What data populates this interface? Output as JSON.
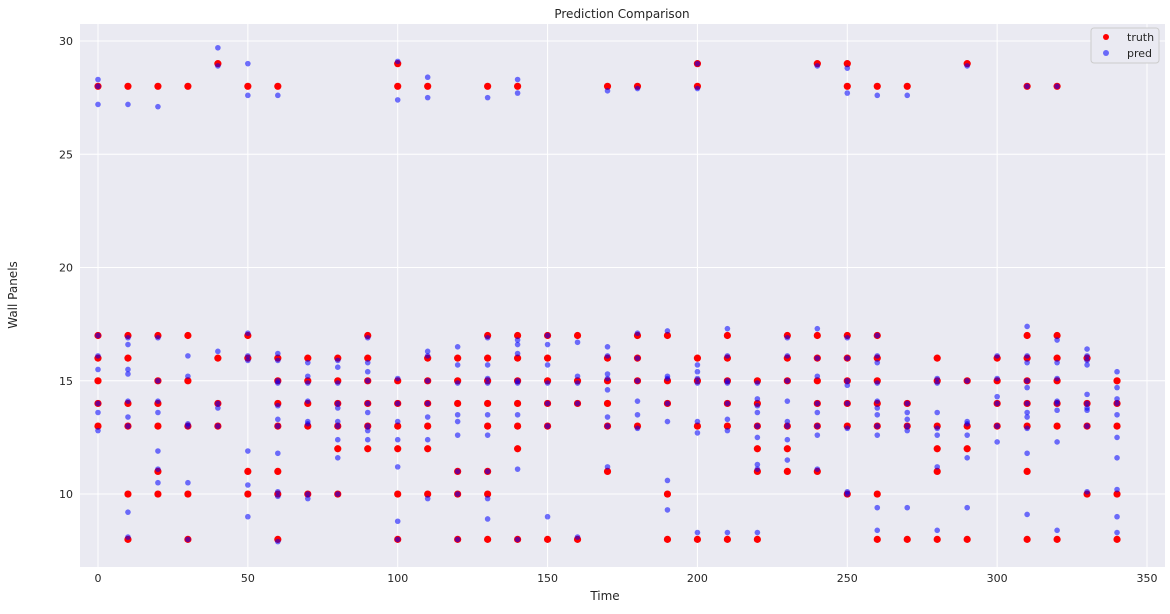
{
  "chart_data": {
    "type": "scatter",
    "title": "Prediction Comparison",
    "xlabel": "Time",
    "ylabel": "Wall Panels",
    "xlim": [
      -6,
      356
    ],
    "ylim": [
      6.78,
      30.75
    ],
    "xticks": [
      0,
      50,
      100,
      150,
      200,
      250,
      300,
      350
    ],
    "yticks": [
      10,
      15,
      20,
      25,
      30
    ],
    "grid": true,
    "legend_position": "top-right",
    "background": "#eaeaf2",
    "series": [
      {
        "name": "truth",
        "color": "#ff0000",
        "points": [
          {
            "x": 0,
            "y": [
              28,
              17,
              16,
              15,
              14,
              13
            ]
          },
          {
            "x": 10,
            "y": [
              28,
              17,
              16,
              14,
              13,
              10,
              8
            ]
          },
          {
            "x": 20,
            "y": [
              28,
              17,
              15,
              14,
              13,
              11,
              10
            ]
          },
          {
            "x": 30,
            "y": [
              28,
              17,
              15,
              13,
              10,
              8
            ]
          },
          {
            "x": 40,
            "y": [
              29,
              16,
              14,
              13
            ]
          },
          {
            "x": 50,
            "y": [
              28,
              17,
              16,
              11,
              10
            ]
          },
          {
            "x": 60,
            "y": [
              28,
              16,
              15,
              14,
              13,
              11,
              10,
              8
            ]
          },
          {
            "x": 70,
            "y": [
              16,
              15,
              14,
              13,
              10
            ]
          },
          {
            "x": 80,
            "y": [
              16,
              15,
              14,
              13,
              12,
              10
            ]
          },
          {
            "x": 90,
            "y": [
              17,
              16,
              15,
              14,
              13,
              12
            ]
          },
          {
            "x": 100,
            "y": [
              29,
              28,
              15,
              14,
              13,
              12,
              10,
              8
            ]
          },
          {
            "x": 110,
            "y": [
              28,
              16,
              15,
              14,
              13,
              12,
              10
            ]
          },
          {
            "x": 120,
            "y": [
              16,
              15,
              14,
              11,
              10,
              8
            ]
          },
          {
            "x": 130,
            "y": [
              28,
              17,
              16,
              15,
              14,
              13,
              11,
              10,
              8
            ]
          },
          {
            "x": 140,
            "y": [
              28,
              17,
              16,
              15,
              14,
              13,
              12,
              8
            ]
          },
          {
            "x": 150,
            "y": [
              17,
              16,
              15,
              14,
              13,
              8
            ]
          },
          {
            "x": 160,
            "y": [
              17,
              15,
              14,
              8
            ]
          },
          {
            "x": 170,
            "y": [
              28,
              16,
              15,
              14,
              13,
              11
            ]
          },
          {
            "x": 180,
            "y": [
              28,
              17,
              16,
              15,
              13
            ]
          },
          {
            "x": 190,
            "y": [
              17,
              15,
              14,
              10,
              8
            ]
          },
          {
            "x": 200,
            "y": [
              29,
              28,
              16,
              15,
              13,
              8
            ]
          },
          {
            "x": 210,
            "y": [
              17,
              16,
              15,
              14,
              13,
              8
            ]
          },
          {
            "x": 220,
            "y": [
              15,
              14,
              13,
              12,
              11,
              8
            ]
          },
          {
            "x": 230,
            "y": [
              17,
              16,
              15,
              13,
              12,
              11
            ]
          },
          {
            "x": 240,
            "y": [
              29,
              17,
              16,
              15,
              14,
              13,
              11
            ]
          },
          {
            "x": 250,
            "y": [
              29,
              28,
              17,
              16,
              15,
              14,
              13,
              10
            ]
          },
          {
            "x": 260,
            "y": [
              28,
              17,
              16,
              15,
              14,
              13,
              10,
              8
            ]
          },
          {
            "x": 270,
            "y": [
              28,
              14,
              13,
              8
            ]
          },
          {
            "x": 280,
            "y": [
              16,
              15,
              13,
              12,
              11,
              8
            ]
          },
          {
            "x": 290,
            "y": [
              29,
              15,
              13,
              12,
              8
            ]
          },
          {
            "x": 300,
            "y": [
              16,
              15,
              14,
              13
            ]
          },
          {
            "x": 310,
            "y": [
              28,
              17,
              16,
              15,
              14,
              13,
              11,
              8
            ]
          },
          {
            "x": 320,
            "y": [
              28,
              17,
              16,
              15,
              14,
              13,
              8
            ]
          },
          {
            "x": 330,
            "y": [
              16,
              14,
              13,
              10
            ]
          },
          {
            "x": 340,
            "y": [
              15,
              14,
              13,
              10,
              8
            ]
          }
        ]
      },
      {
        "name": "pred",
        "color": "#0000ff",
        "points": [
          {
            "x": 0,
            "y": [
              28.3,
              28,
              27.2,
              17,
              16.1,
              15.5,
              14,
              13.6,
              12.8
            ]
          },
          {
            "x": 10,
            "y": [
              27.2,
              16.9,
              16.6,
              15.5,
              15.3,
              14.1,
              13.4,
              13,
              9.2,
              8.1
            ]
          },
          {
            "x": 20,
            "y": [
              27.1,
              16.9,
              15,
              14.1,
              13.6,
              11.9,
              11.1,
              10.5
            ]
          },
          {
            "x": 30,
            "y": [
              16.1,
              15.2,
              13.1,
              13,
              10.5,
              8
            ]
          },
          {
            "x": 40,
            "y": [
              29.7,
              28.9,
              16.3,
              14,
              13.8,
              13
            ]
          },
          {
            "x": 50,
            "y": [
              29,
              27.6,
              17.1,
              16.1,
              15.9,
              11.9,
              10.4,
              9
            ]
          },
          {
            "x": 60,
            "y": [
              27.6,
              16.2,
              15.9,
              15,
              14.9,
              13.9,
              13.3,
              13,
              11.8,
              10.1,
              9.9,
              7.9
            ]
          },
          {
            "x": 70,
            "y": [
              15.8,
              15.2,
              14.9,
              14.1,
              13.2,
              13.1,
              9.8,
              10
            ]
          },
          {
            "x": 80,
            "y": [
              15.9,
              15.6,
              14.9,
              14,
              13.8,
              13.2,
              13,
              12.4,
              11.6,
              10
            ]
          },
          {
            "x": 90,
            "y": [
              16.9,
              15.8,
              15.4,
              15,
              14,
              13.6,
              13,
              12.4,
              12.8
            ]
          },
          {
            "x": 100,
            "y": [
              29.1,
              27.4,
              15.1,
              14,
              13.2,
              12.4,
              11.2,
              8.8,
              8
            ]
          },
          {
            "x": 110,
            "y": [
              28.4,
              27.5,
              16.3,
              16.1,
              15,
              14,
              13.4,
              12.4,
              9.8
            ]
          },
          {
            "x": 120,
            "y": [
              16.5,
              15.7,
              14.9,
              13.5,
              13.2,
              12.6,
              11,
              10,
              8
            ]
          },
          {
            "x": 130,
            "y": [
              27.5,
              16.9,
              15.7,
              15.1,
              14.9,
              13.5,
              12.6,
              11,
              9.8,
              8.9
            ]
          },
          {
            "x": 140,
            "y": [
              28.3,
              27.7,
              16.8,
              16.6,
              16.2,
              15,
              14.9,
              13.5,
              11.1,
              8
            ]
          },
          {
            "x": 150,
            "y": [
              17,
              16.6,
              15.7,
              14.9,
              14,
              13,
              9
            ]
          },
          {
            "x": 160,
            "y": [
              16.7,
              15.2,
              14.9,
              14,
              8.1
            ]
          },
          {
            "x": 170,
            "y": [
              27.8,
              16.5,
              16.1,
              15.3,
              15.1,
              14.6,
              13.4,
              13,
              11.2
            ]
          },
          {
            "x": 180,
            "y": [
              27.9,
              17.1,
              16,
              15,
              14.1,
              13.5,
              12.9
            ]
          },
          {
            "x": 190,
            "y": [
              17.2,
              15.2,
              15.1,
              14,
              13.2,
              10.6,
              9.3
            ]
          },
          {
            "x": 200,
            "y": [
              29,
              27.9,
              15.7,
              15.4,
              15.1,
              14.9,
              13.2,
              12.7,
              8.3
            ]
          },
          {
            "x": 210,
            "y": [
              17.3,
              16.1,
              15,
              14.9,
              14,
              13.3,
              12.8,
              8.3
            ]
          },
          {
            "x": 220,
            "y": [
              14.9,
              14.2,
              13.9,
              13.6,
              13,
              12.5,
              11.3,
              11.1,
              8.3
            ]
          },
          {
            "x": 230,
            "y": [
              16.9,
              16.1,
              15,
              14.1,
              13.2,
              13,
              12.4,
              11.5
            ]
          },
          {
            "x": 240,
            "y": [
              28.9,
              17.3,
              16,
              15.2,
              14,
              13.6,
              13,
              12.6,
              11.1
            ]
          },
          {
            "x": 250,
            "y": [
              28.8,
              27.7,
              16.9,
              16,
              15,
              14.8,
              14,
              12.9,
              10.1,
              10
            ]
          },
          {
            "x": 260,
            "y": [
              27.6,
              17,
              16.1,
              15.8,
              14.9,
              14.1,
              13.8,
              13.5,
              13,
              12.6,
              9.4,
              8.4
            ]
          },
          {
            "x": 270,
            "y": [
              27.6,
              14,
              13.6,
              13.3,
              13,
              12.8,
              9.4
            ]
          },
          {
            "x": 280,
            "y": [
              15.1,
              14.9,
              13.6,
              12.9,
              12.6,
              11.2,
              8.4
            ]
          },
          {
            "x": 290,
            "y": [
              28.9,
              15,
              13.2,
              13.1,
              12.6,
              11.6,
              9.4
            ]
          },
          {
            "x": 300,
            "y": [
              16.1,
              15.1,
              14.3,
              14,
              13,
              12.3
            ]
          },
          {
            "x": 310,
            "y": [
              28,
              17.4,
              16.1,
              15.8,
              15,
              14.7,
              14,
              13.6,
              13.4,
              12.9,
              11.8,
              9.1
            ]
          },
          {
            "x": 320,
            "y": [
              28,
              16.8,
              15.8,
              15.1,
              14.1,
              14,
              13.7,
              12.3,
              8.4
            ]
          },
          {
            "x": 330,
            "y": [
              16.4,
              16.1,
              15.9,
              15.7,
              14.4,
              14,
              13.8,
              13.7,
              13,
              10.1
            ]
          },
          {
            "x": 340,
            "y": [
              15.4,
              14.7,
              14.2,
              14,
              13.5,
              12.5,
              11.6,
              10.2,
              9,
              8.3
            ]
          }
        ]
      }
    ]
  }
}
